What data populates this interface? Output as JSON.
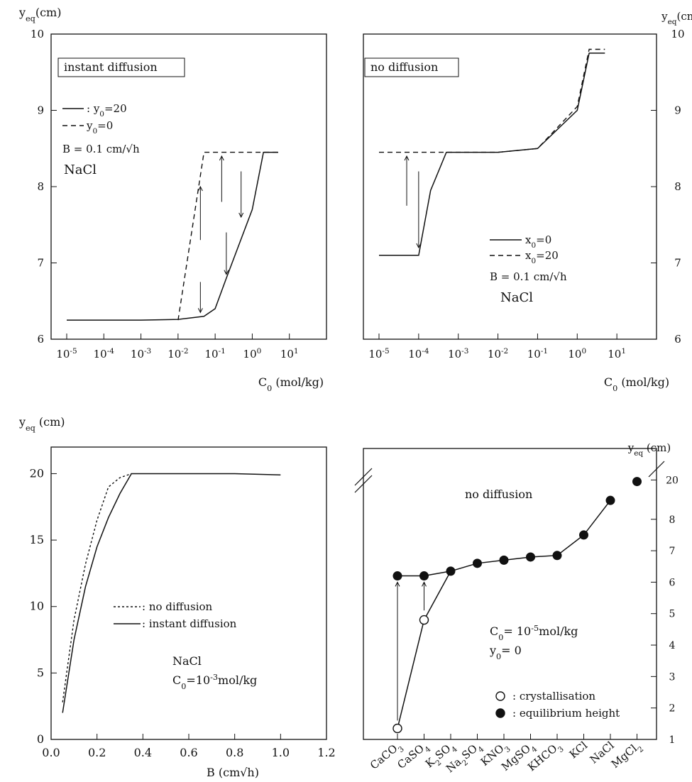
{
  "chart_data": [
    {
      "type": "line",
      "ylabel": "y",
      "ylabel_sub": "eq",
      "ylabel_unit": "(cm)",
      "xlabel": "C",
      "xlabel_sub": "0",
      "xlabel_unit": "(mol/kg)",
      "xscale": "log",
      "xlim": [
        1e-05,
        100
      ],
      "ylim": [
        6,
        10
      ],
      "xticks": [
        "10",
        "10",
        "10",
        "10",
        "10",
        "10",
        "10"
      ],
      "xtick_exponents": [
        "-5",
        "-4",
        "-3",
        "-2",
        "-1",
        "0",
        "1"
      ],
      "xtick_values": [
        1e-05,
        0.0001,
        0.001,
        0.01,
        0.1,
        1,
        10
      ],
      "yticks": [
        "6",
        "7",
        "8",
        "9",
        "10"
      ],
      "box_label": "instant diffusion",
      "legend": [
        {
          "style": "solid",
          "text": ": y",
          "sub": "0",
          "tail": "=20"
        },
        {
          "style": "dashed",
          "text": "y",
          "sub": "0",
          "tail": "=0"
        }
      ],
      "annotations": [
        "B = 0.1 cm/√h",
        "NaCl"
      ],
      "series": [
        {
          "style": "solid",
          "x": [
            1e-05,
            0.0001,
            0.001,
            0.01,
            0.05,
            0.1,
            0.2,
            1,
            2,
            5
          ],
          "y": [
            6.25,
            6.25,
            6.25,
            6.26,
            6.3,
            6.4,
            6.8,
            7.7,
            8.45,
            8.45
          ]
        },
        {
          "style": "dashed",
          "x": [
            0.01,
            0.05,
            0.5,
            5
          ],
          "y": [
            6.25,
            8.45,
            8.45,
            8.45
          ]
        }
      ],
      "arrows": [
        {
          "x": 0.04,
          "y_from": 7.3,
          "y_to": 8.0
        },
        {
          "x": 0.15,
          "y_from": 7.8,
          "y_to": 8.4
        },
        {
          "x": 0.04,
          "y_from": 6.75,
          "y_to": 6.35
        },
        {
          "x": 0.2,
          "y_from": 7.4,
          "y_to": 6.85
        },
        {
          "x": 0.5,
          "y_from": 8.2,
          "y_to": 7.6
        }
      ]
    },
    {
      "type": "line",
      "ylabel": "y",
      "ylabel_sub": "eq",
      "ylabel_unit": "(cm)",
      "xlabel": "C",
      "xlabel_sub": "0",
      "xlabel_unit": "(mol/kg)",
      "xscale": "log",
      "xlim": [
        1e-05,
        100
      ],
      "ylim": [
        6,
        10
      ],
      "xticks": [
        "10",
        "10",
        "10",
        "10",
        "10",
        "10",
        "10"
      ],
      "xtick_exponents": [
        "-5",
        "-4",
        "-3",
        "-2",
        "-1",
        "0",
        "1"
      ],
      "xtick_values": [
        1e-05,
        0.0001,
        0.001,
        0.01,
        0.1,
        1,
        10
      ],
      "yticks": [
        "6",
        "7",
        "8",
        "9",
        "10"
      ],
      "box_label": "no diffusion",
      "legend": [
        {
          "style": "solid",
          "text": "x",
          "sub": "0",
          "tail": "=0"
        },
        {
          "style": "dashed",
          "text": "x",
          "sub": "0",
          "tail": "=20"
        }
      ],
      "annotations": [
        "B = 0.1 cm/√h",
        "NaCl"
      ],
      "series": [
        {
          "style": "solid",
          "x": [
            1e-05,
            0.0001,
            0.0002,
            0.0005,
            0.001,
            0.01,
            0.1,
            1,
            2,
            5
          ],
          "y": [
            7.1,
            7.1,
            7.95,
            8.45,
            8.45,
            8.45,
            8.5,
            9.0,
            9.75,
            9.75
          ]
        },
        {
          "style": "dashed",
          "x": [
            1e-05,
            0.0001,
            0.0005,
            0.01,
            0.1,
            1,
            2,
            5
          ],
          "y": [
            8.45,
            8.45,
            8.45,
            8.45,
            8.5,
            9.05,
            9.8,
            9.8
          ]
        }
      ],
      "arrows": [
        {
          "x": 5e-05,
          "y_from": 7.75,
          "y_to": 8.4
        },
        {
          "x": 0.0001,
          "y_from": 8.2,
          "y_to": 7.2
        }
      ]
    },
    {
      "type": "line",
      "ylabel": "y",
      "ylabel_sub": "eq",
      "ylabel_unit": "(cm)",
      "xlabel": "B (cm√h)",
      "xlim": [
        0,
        1.2
      ],
      "ylim": [
        0,
        22
      ],
      "xticks": [
        "0.0",
        "0.2",
        "0.4",
        "0.6",
        "0.8",
        "1.0",
        "1.2"
      ],
      "xtick_values": [
        0,
        0.2,
        0.4,
        0.6,
        0.8,
        1.0,
        1.2
      ],
      "yticks": [
        "0",
        "5",
        "10",
        "15",
        "20"
      ],
      "ytick_values": [
        0,
        5,
        10,
        15,
        20
      ],
      "legend": [
        {
          "style": "dotted",
          "text": ": no diffusion"
        },
        {
          "style": "solid",
          "text": ": instant diffusion"
        }
      ],
      "annotation_lines": [
        "NaCl"
      ],
      "annotation_conc": {
        "text": "C",
        "sub": "0",
        "mid": "=10",
        "sup": "-3",
        "tail": "mol/kg"
      },
      "series": [
        {
          "style": "solid",
          "x": [
            0.05,
            0.1,
            0.15,
            0.2,
            0.25,
            0.3,
            0.35,
            0.5,
            0.8,
            1.0
          ],
          "y": [
            2,
            7.5,
            11.5,
            14.5,
            16.7,
            18.5,
            20,
            20,
            20,
            19.9
          ]
        },
        {
          "style": "dotted",
          "x": [
            0.05,
            0.1,
            0.15,
            0.2,
            0.25,
            0.3,
            0.35
          ],
          "y": [
            2.8,
            9,
            13.2,
            16.5,
            19,
            19.7,
            20
          ]
        }
      ]
    },
    {
      "type": "scatter",
      "ylabel": "y",
      "ylabel_sub": "eq",
      "ylabel_unit": "(cm)",
      "ylim": [
        1,
        9
      ],
      "yticks": [
        "1",
        "2",
        "3",
        "4",
        "5",
        "6",
        "7",
        "8",
        "20"
      ],
      "ytick_values": [
        1,
        2,
        3,
        4,
        5,
        6,
        7,
        8,
        9.25
      ],
      "axis_break": true,
      "categories": [
        {
          "base": "CaCO",
          "sub": "3",
          "rest": ""
        },
        {
          "base": "CaSO",
          "sub": "4",
          "rest": ""
        },
        {
          "base": "K",
          "sub": "2",
          "rest": "SO",
          "sub2": "4"
        },
        {
          "base": "Na",
          "sub": "2",
          "rest": "SO",
          "sub2": "4"
        },
        {
          "base": "KNO",
          "sub": "3",
          "rest": ""
        },
        {
          "base": "MgSO",
          "sub": "4",
          "rest": ""
        },
        {
          "base": "KHCO",
          "sub": "3",
          "rest": ""
        },
        {
          "base": "KCl",
          "sub": "",
          "rest": ""
        },
        {
          "base": "NaCl",
          "sub": "",
          "rest": ""
        },
        {
          "base": "MgCl",
          "sub": "",
          "rest": "",
          "tail_sub": "2"
        }
      ],
      "box_label": "no diffusion",
      "conditions": {
        "conc": {
          "text": "C",
          "sub": "0",
          "mid": "= 10",
          "sup": "-5",
          "tail": "mol/kg"
        },
        "y0": {
          "text": "y",
          "sub": "0",
          "tail": "=   0"
        }
      },
      "legend": [
        {
          "marker": "open",
          "text": ": crystallisation"
        },
        {
          "marker": "filled",
          "text": ": equilibrium height"
        }
      ],
      "series": [
        {
          "name": "crystallisation",
          "marker": "open",
          "values": [
            1.35,
            4.8,
            6.35,
            null,
            null,
            null,
            null,
            null,
            null,
            null
          ]
        },
        {
          "name": "equilibrium height",
          "marker": "filled",
          "values": [
            6.2,
            6.2,
            6.35,
            6.6,
            6.7,
            6.8,
            6.85,
            7.5,
            8.6,
            9.2
          ]
        }
      ],
      "arrows": [
        {
          "category": 0,
          "y_from": 1.6,
          "y_to": 6.0
        },
        {
          "category": 1,
          "y_from": 5.1,
          "y_to": 6.0
        }
      ]
    }
  ]
}
